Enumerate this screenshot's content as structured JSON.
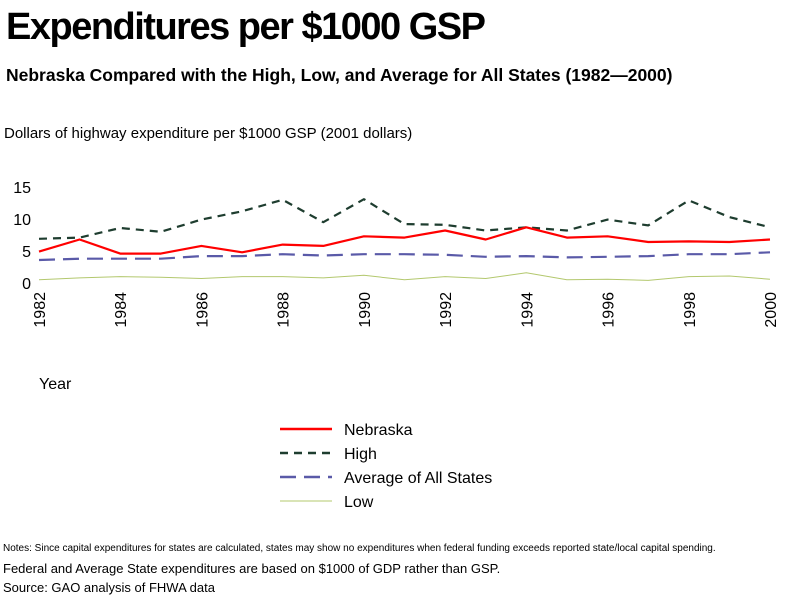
{
  "chart_data": {
    "type": "line",
    "title": "Expenditures per $1000 GSP",
    "subtitle": "Nebraska Compared with the High, Low, and Average for All States (1982—2000)",
    "ylabel": "Dollars of highway expenditure per $1000 GSP  (2001 dollars)",
    "xlabel": "Year",
    "ylim": [
      0,
      15
    ],
    "yticks": [
      "0",
      "5",
      "10",
      "15"
    ],
    "x": [
      1982,
      1983,
      1984,
      1985,
      1986,
      1987,
      1988,
      1989,
      1990,
      1991,
      1992,
      1993,
      1994,
      1995,
      1996,
      1997,
      1998,
      1999,
      2000
    ],
    "xticks": [
      "1982",
      "1984",
      "1986",
      "1988",
      "1990",
      "1992",
      "1994",
      "1996",
      "1998",
      "2000"
    ],
    "grid": false,
    "legend_position": "below",
    "series": [
      {
        "name": "Nebraska",
        "color": "#ff0000",
        "style": "solid",
        "values": [
          4.9,
          6.8,
          4.6,
          4.6,
          5.8,
          4.8,
          6.0,
          5.8,
          7.3,
          7.1,
          8.2,
          6.8,
          8.7,
          7.1,
          7.3,
          6.4,
          6.5,
          6.4,
          6.8
        ]
      },
      {
        "name": "High",
        "color": "#1e3d2f",
        "style": "dashed",
        "values": [
          6.9,
          7.1,
          8.6,
          8.0,
          9.9,
          11.2,
          13.0,
          9.5,
          13.1,
          9.2,
          9.1,
          8.2,
          8.7,
          8.2,
          9.9,
          9.0,
          12.9,
          10.3,
          8.7
        ]
      },
      {
        "name": "Average of All States",
        "color": "#5a5aa8",
        "style": "longdash",
        "values": [
          3.6,
          3.8,
          3.8,
          3.8,
          4.2,
          4.2,
          4.5,
          4.3,
          4.5,
          4.5,
          4.4,
          4.1,
          4.2,
          4.0,
          4.1,
          4.2,
          4.5,
          4.5,
          4.8
        ]
      },
      {
        "name": "Low",
        "color": "#b3c86e",
        "style": "solid",
        "values": [
          0.5,
          0.8,
          1.0,
          0.9,
          0.7,
          1.0,
          1.0,
          0.8,
          1.2,
          0.5,
          1.0,
          0.7,
          1.6,
          0.5,
          0.6,
          0.4,
          1.0,
          1.1,
          0.6
        ]
      }
    ]
  },
  "notes": {
    "line1": "Notes: Since capital expenditures for states are calculated, states may show no expenditures when federal funding exceeds reported state/local capital spending.",
    "line2": "Federal and Average State expenditures are based on $1000 of GDP rather than GSP.",
    "line3": "Source: GAO  analysis of FHWA data"
  }
}
